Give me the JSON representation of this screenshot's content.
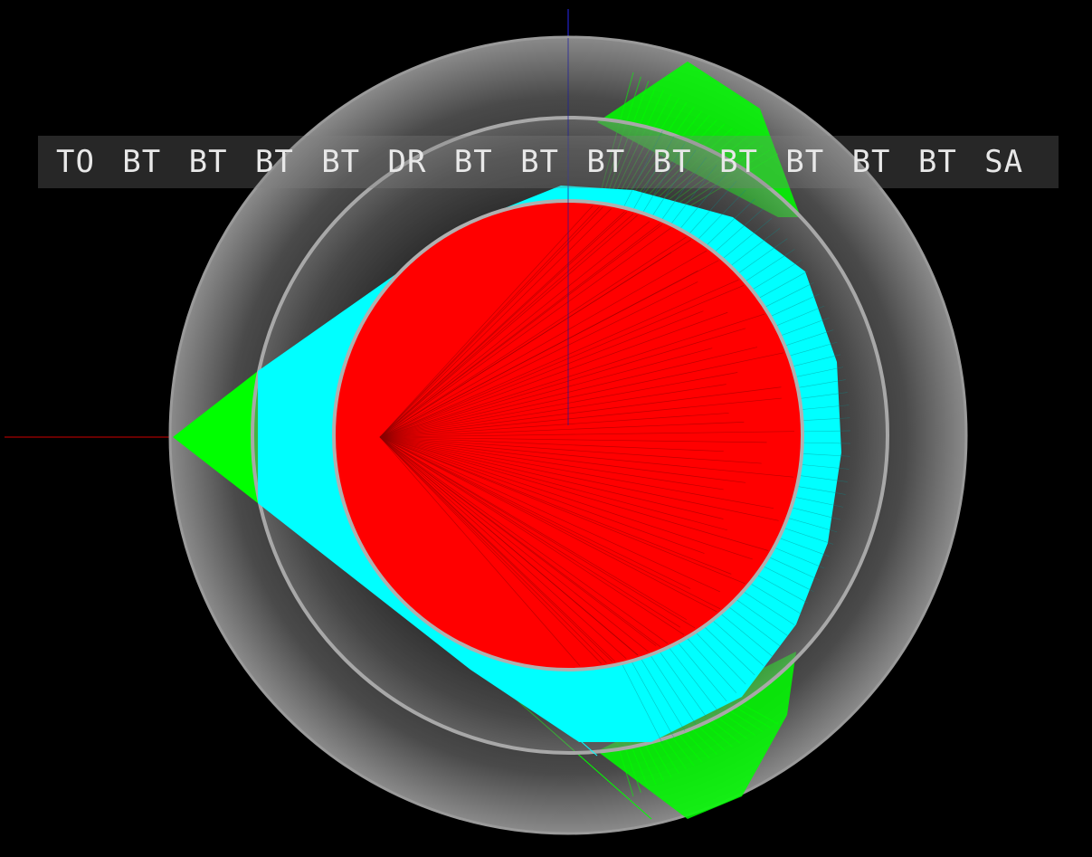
{
  "viewer": {
    "background_color": "#000000",
    "history_labels": [
      "TO",
      "BT",
      "BT",
      "BT",
      "BT",
      "DR",
      "BT",
      "BT",
      "BT",
      "BT",
      "BT",
      "BT",
      "BT",
      "BT",
      "SA"
    ],
    "colors": {
      "axis_x": "#8b0000",
      "axis_y": "#1a1aa0",
      "outer_shell": "#9a9a9a",
      "middle_shell": "#a8a8a8",
      "inner_sphere_edge": "#b0b0b0",
      "photons_green": "#00ff00",
      "photons_cyan": "#00ffff",
      "photons_red": "#ff0000"
    }
  }
}
